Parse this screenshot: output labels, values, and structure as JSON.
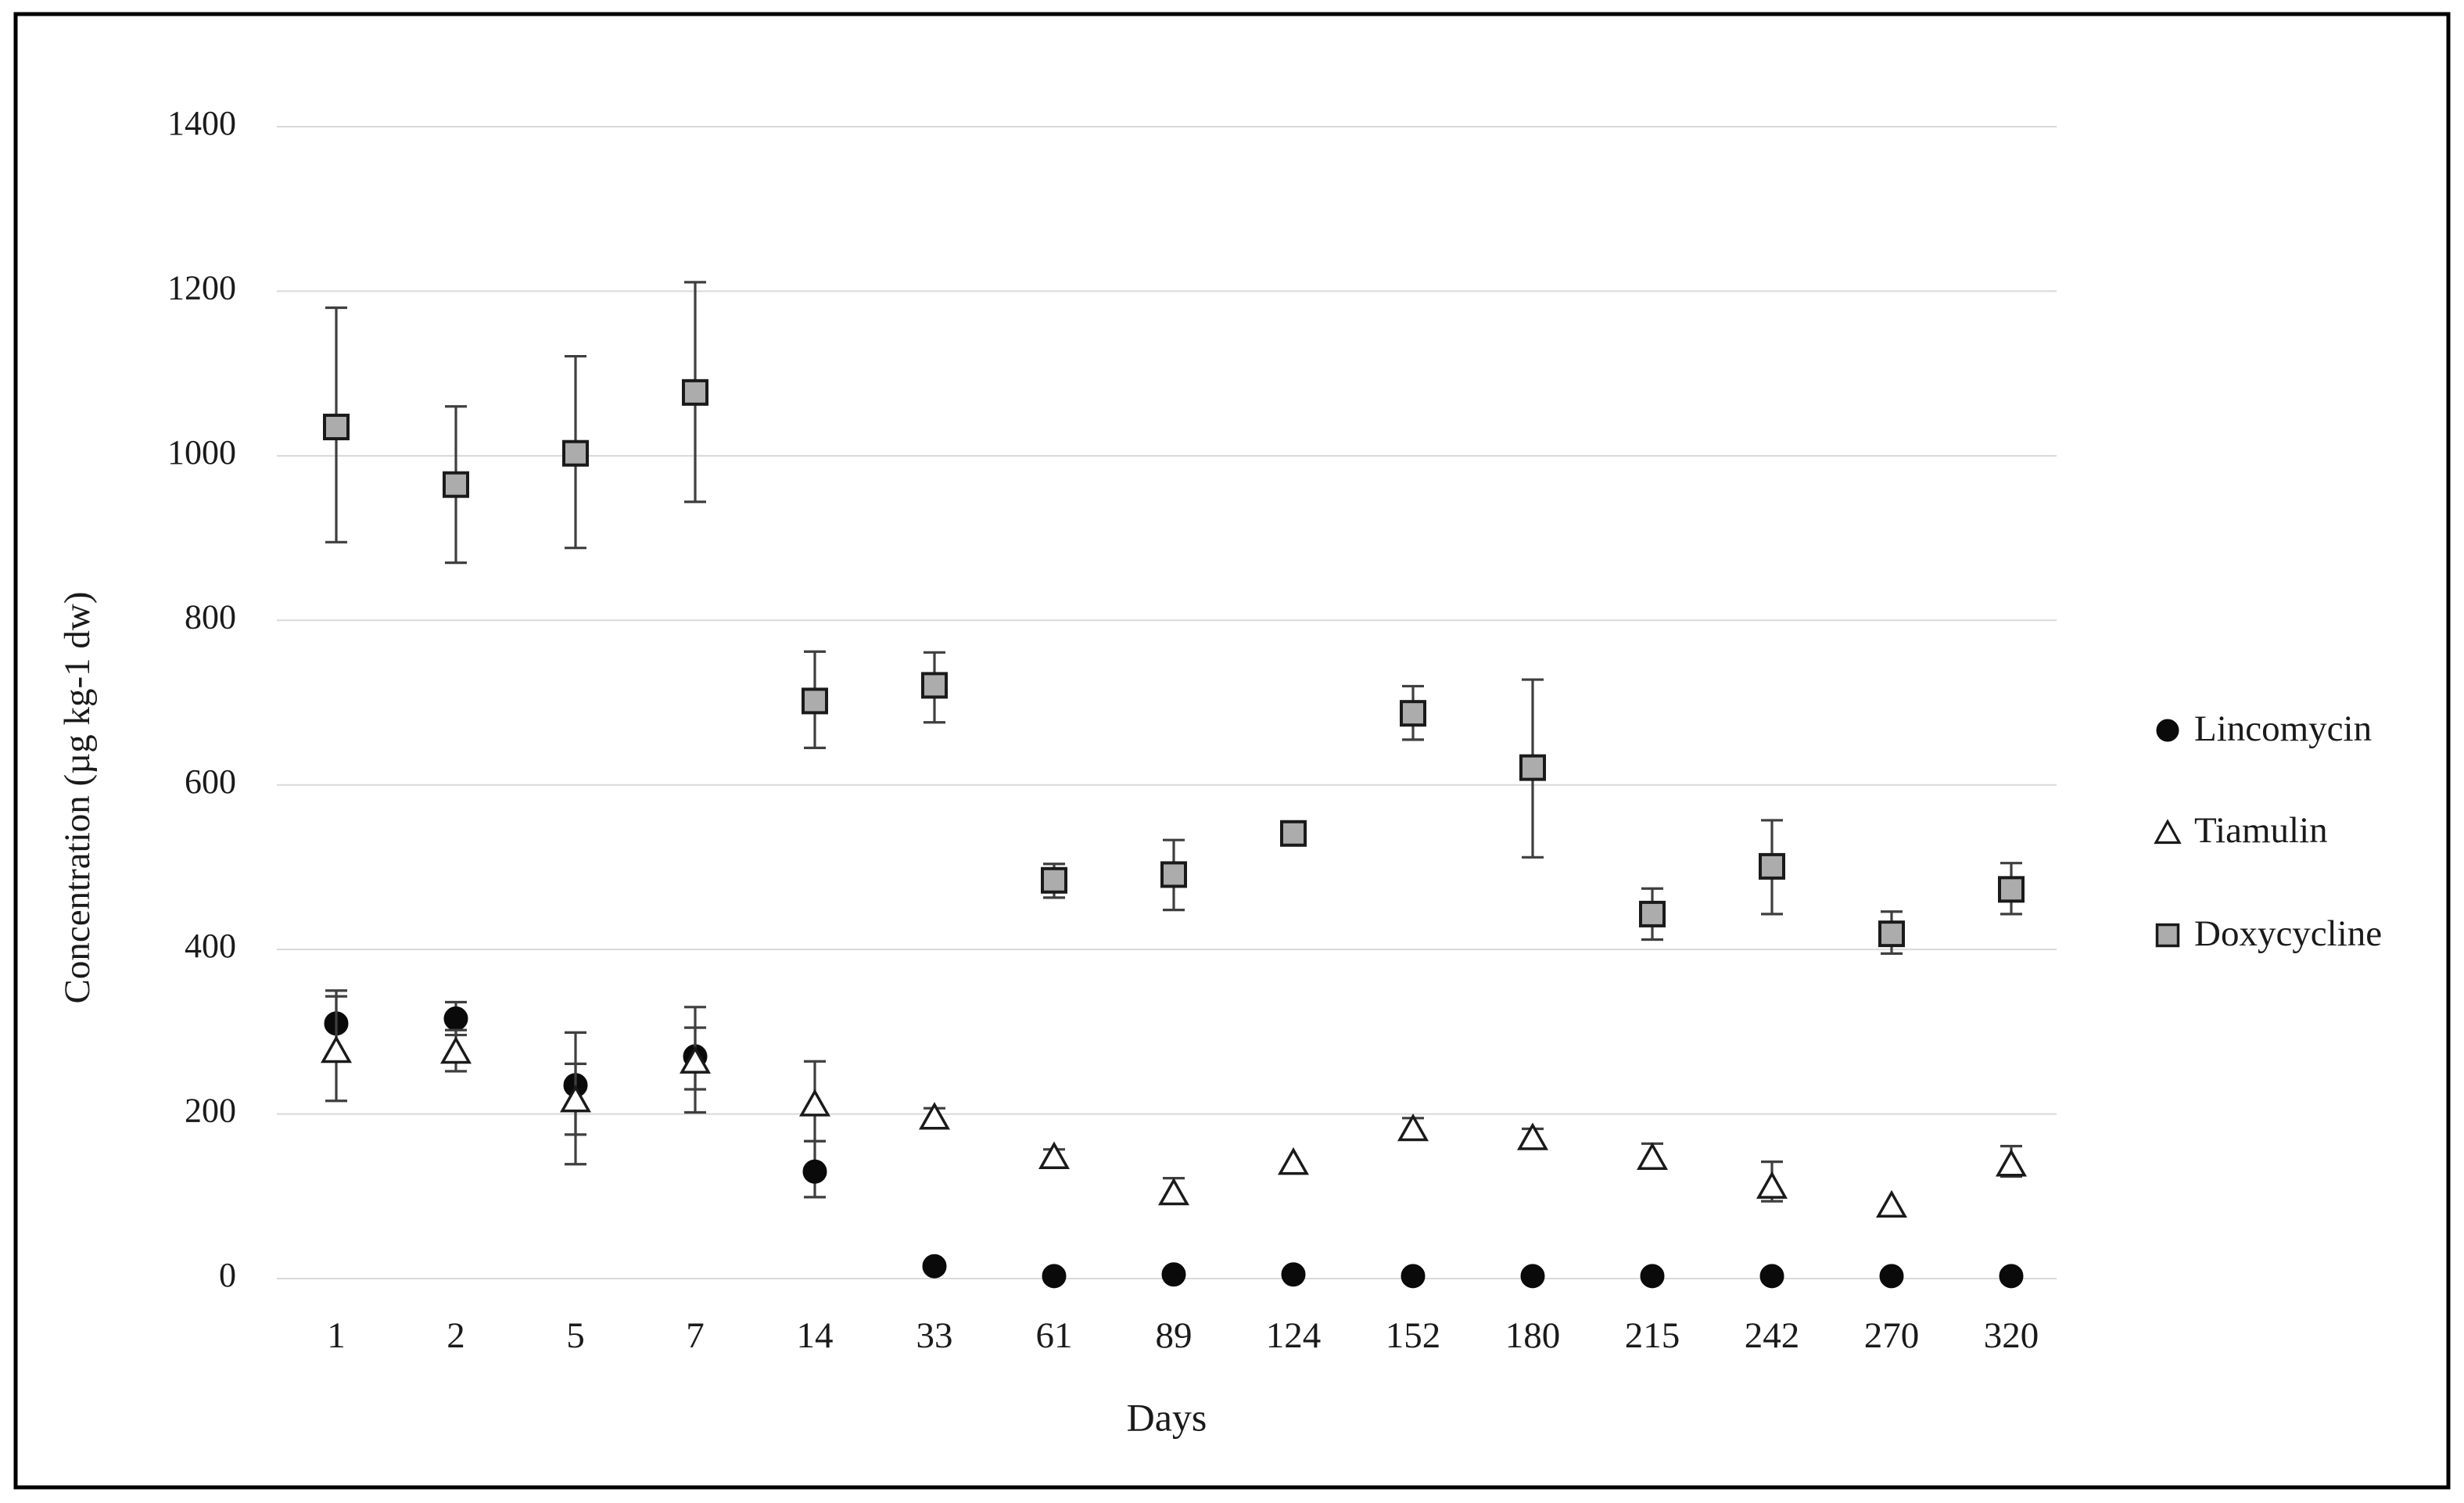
{
  "figure": {
    "background_color": "#ffffff",
    "border_color": "#000000",
    "gridline_color": "#d9d9d9",
    "text_color": "#1a1a1a",
    "errorbar_color": "#3f3f3f"
  },
  "chart_data": {
    "type": "scatter",
    "title": "",
    "xlabel": "Days",
    "ylabel": "Concentration (µg kg-1 dw)",
    "ylim": [
      0,
      1400
    ],
    "ytick_interval": 200,
    "ytick_labels": [
      "0",
      "200",
      "400",
      "600",
      "800",
      "1000",
      "1200",
      "1400"
    ],
    "grid": "horizontal-only",
    "legend_position": "right",
    "categories": [
      "1",
      "2",
      "5",
      "7",
      "14",
      "33",
      "61",
      "89",
      "124",
      "152",
      "180",
      "215",
      "242",
      "270",
      "320"
    ],
    "series": [
      {
        "name": "Lincomycin",
        "marker": "filled-circle",
        "marker_fill": "#0a0a0a",
        "marker_stroke": "#0a0a0a",
        "values": [
          310,
          316,
          235,
          270,
          130,
          15,
          3,
          5,
          5,
          3,
          3,
          3,
          3,
          3,
          3
        ],
        "err_hi": [
          40,
          20,
          64,
          60,
          37,
          0,
          0,
          0,
          0,
          0,
          0,
          0,
          0,
          0,
          0
        ],
        "err_lo": [
          40,
          20,
          60,
          40,
          31,
          0,
          0,
          0,
          0,
          0,
          0,
          0,
          0,
          0,
          0
        ]
      },
      {
        "name": "Tiamulin",
        "marker": "open-triangle",
        "marker_fill": "#ffffff",
        "marker_stroke": "#1a1a1a",
        "values": [
          278,
          277,
          218,
          265,
          213,
          197,
          149,
          105,
          142,
          183,
          172,
          148,
          113,
          90,
          140
        ],
        "err_hi": [
          65,
          25,
          43,
          40,
          51,
          10,
          8,
          17,
          0,
          12,
          10,
          16,
          29,
          0,
          21
        ],
        "err_lo": [
          62,
          25,
          79,
          63,
          46,
          0,
          0,
          8,
          0,
          0,
          0,
          0,
          19,
          0,
          16
        ]
      },
      {
        "name": "Doxycycline",
        "marker": "filled-square",
        "marker_fill": "#acacac",
        "marker_stroke": "#1a1a1a",
        "values": [
          1035,
          965,
          1003,
          1077,
          702,
          721,
          484,
          491,
          541,
          687,
          621,
          443,
          501,
          419,
          473
        ],
        "err_hi": [
          145,
          95,
          118,
          134,
          60,
          40,
          20,
          42,
          0,
          33,
          107,
          31,
          56,
          27,
          32
        ],
        "err_lo": [
          140,
          95,
          115,
          133,
          57,
          45,
          21,
          43,
          0,
          32,
          109,
          31,
          58,
          24,
          30
        ]
      }
    ]
  }
}
